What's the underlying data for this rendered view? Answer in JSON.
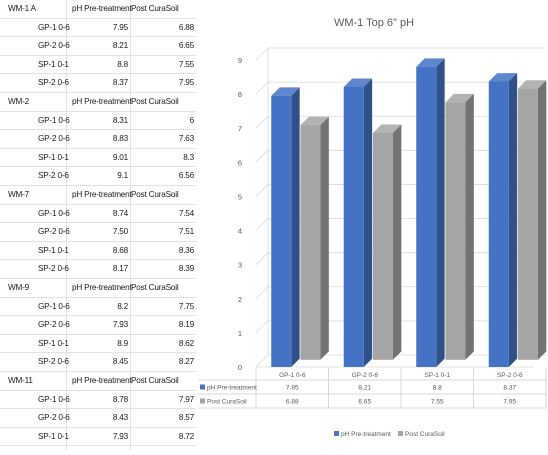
{
  "spreadsheet": {
    "groups": [
      {
        "name": "WM-1 A",
        "col_pre": "pH Pre-treatment",
        "col_post": "Post CuraSoil",
        "rows": [
          {
            "label": "GP-1 0-6",
            "pre": "7.95",
            "post": "6.88"
          },
          {
            "label": "GP-2 0-6",
            "pre": "8.21",
            "post": "6.65"
          },
          {
            "label": "SP-1 0-1",
            "pre": "8.8",
            "post": "7.55"
          },
          {
            "label": "SP-2 0-6",
            "pre": "8.37",
            "post": "7.95"
          }
        ]
      },
      {
        "name": "WM-2",
        "col_pre": "pH Pre-treatment",
        "col_post": "Post CuraSoil",
        "rows": [
          {
            "label": "GP-1 0-6",
            "pre": "8.31",
            "post": "6"
          },
          {
            "label": "GP-2 0-6",
            "pre": "8.83",
            "post": "7.63"
          },
          {
            "label": "SP-1 0-1",
            "pre": "9.01",
            "post": "8.3"
          },
          {
            "label": "SP-2 0-6",
            "pre": "9.1",
            "post": "6.56"
          }
        ]
      },
      {
        "name": "WM-7",
        "col_pre": "pH Pre-treatment",
        "col_post": "Post CuraSoil",
        "rows": [
          {
            "label": "GP-1 0-6",
            "pre": "8.74",
            "post": "7.54"
          },
          {
            "label": "GP-2 0-6",
            "pre": "7.50",
            "post": "7.51"
          },
          {
            "label": "SP-1 0-1",
            "pre": "8.68",
            "post": "8.36"
          },
          {
            "label": "SP-2 0-6",
            "pre": "8.17",
            "post": "8.39"
          }
        ]
      },
      {
        "name": "WM-9",
        "col_pre": "pH Pre-treatment",
        "col_post": "Post CuraSoil",
        "rows": [
          {
            "label": "GP-1 0-6",
            "pre": "8.2",
            "post": "7.75"
          },
          {
            "label": "GP-2 0-6",
            "pre": "7.93",
            "post": "8.19"
          },
          {
            "label": "SP-1 0-1",
            "pre": "8.9",
            "post": "8.62"
          },
          {
            "label": "SP-2 0-6",
            "pre": "8.45",
            "post": "8.27"
          }
        ]
      },
      {
        "name": "WM-11",
        "col_pre": "pH Pre-treatment",
        "col_post": "Post CuraSoil",
        "rows": [
          {
            "label": "GP-1 0-6",
            "pre": "8.78",
            "post": "7.97"
          },
          {
            "label": "GP-2 0-6",
            "pre": "8.43",
            "post": "8.57"
          },
          {
            "label": "SP-1 0-1",
            "pre": "7.93",
            "post": "8.72"
          }
        ]
      }
    ]
  },
  "chart_data": {
    "type": "bar",
    "title": "WM-1 Top 6\" pH",
    "categories": [
      "GP-1 0-6",
      "GP-2 0-6",
      "SP-1 0-1",
      "SP-2 0-6"
    ],
    "series": [
      {
        "name": "pH Pre-treatment",
        "values": [
          7.95,
          8.21,
          8.8,
          8.37
        ],
        "labels": [
          "7.95",
          "8.21",
          "8.8",
          "8.37"
        ],
        "color": "#4472c4"
      },
      {
        "name": "Post CuraSoil",
        "values": [
          6.88,
          6.65,
          7.55,
          7.95
        ],
        "labels": [
          "6.88",
          "6.65",
          "7.55",
          "7.95"
        ],
        "color": "#a5a5a5"
      }
    ],
    "y_ticks": [
      "0",
      "1",
      "2",
      "3",
      "4",
      "5",
      "6",
      "7",
      "8",
      "9"
    ],
    "ylim": [
      0,
      9
    ],
    "style": "3d-clustered-column",
    "gridlines": true,
    "data_table": true,
    "legend_position": "bottom"
  }
}
